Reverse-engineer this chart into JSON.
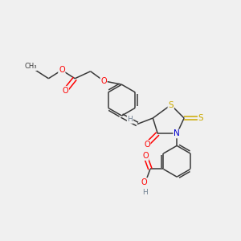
{
  "background_color": "#f0f0f0",
  "bond_color": "#3a3a3a",
  "colors": {
    "O": "#ff0000",
    "N": "#0000cd",
    "S": "#ccaa00",
    "H": "#708090",
    "C": "#3a3a3a"
  },
  "figsize": [
    3.0,
    3.0
  ],
  "dpi": 100
}
